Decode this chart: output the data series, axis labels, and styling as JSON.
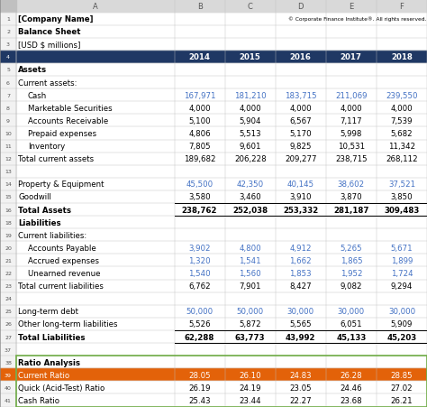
{
  "title_row1": "[Company Name]",
  "title_row2": "Balance Sheet",
  "title_row3": "[USD $ millions]",
  "copyright": "© Corporate Finance Institute®. All rights reserved.",
  "col_headers": [
    "A",
    "B",
    "C",
    "D",
    "E",
    "F"
  ],
  "header_years": [
    "2014",
    "2015",
    "2016",
    "2017",
    "2018"
  ],
  "header_bg": "#1f3864",
  "header_fg": "#ffffff",
  "col_header_bg": "#d9d9d9",
  "col_header_fg": "#555555",
  "row_num_bg": "#f2f2f2",
  "row_num_fg": "#555555",
  "rows": [
    {
      "row": 1,
      "label": "[Company Name]",
      "values": [
        "",
        "",
        "",
        "",
        ""
      ],
      "bold": true,
      "indent": 0,
      "color_vals": false,
      "is_title": true,
      "title_idx": 0
    },
    {
      "row": 2,
      "label": "Balance Sheet",
      "values": [
        "",
        "",
        "",
        "",
        ""
      ],
      "bold": true,
      "indent": 0,
      "color_vals": false,
      "is_title": true,
      "title_idx": 1
    },
    {
      "row": 3,
      "label": "[USD $ millions]",
      "values": [
        "",
        "",
        "",
        "",
        ""
      ],
      "bold": false,
      "indent": 0,
      "color_vals": false,
      "is_title": true,
      "title_idx": 2
    },
    {
      "row": 4,
      "label": "",
      "values": [
        "2014",
        "2015",
        "2016",
        "2017",
        "2018"
      ],
      "bold": true,
      "indent": 0,
      "color_vals": false,
      "is_year_header": true
    },
    {
      "row": 5,
      "label": "Assets",
      "values": [
        "",
        "",
        "",
        "",
        ""
      ],
      "bold": true,
      "indent": 0,
      "color_vals": false
    },
    {
      "row": 6,
      "label": "Current assets:",
      "values": [
        "",
        "",
        "",
        "",
        ""
      ],
      "bold": false,
      "indent": 0,
      "color_vals": false
    },
    {
      "row": 7,
      "label": "Cash",
      "values": [
        "167,971",
        "181,210",
        "183,715",
        "211,069",
        "239,550"
      ],
      "bold": false,
      "indent": 1,
      "color_vals": true
    },
    {
      "row": 8,
      "label": "Marketable Securities",
      "values": [
        "4,000",
        "4,000",
        "4,000",
        "4,000",
        "4,000"
      ],
      "bold": false,
      "indent": 1,
      "color_vals": false
    },
    {
      "row": 9,
      "label": "Accounts Receivable",
      "values": [
        "5,100",
        "5,904",
        "6,567",
        "7,117",
        "7,539"
      ],
      "bold": false,
      "indent": 1,
      "color_vals": false
    },
    {
      "row": 10,
      "label": "Prepaid expenses",
      "values": [
        "4,806",
        "5,513",
        "5,170",
        "5,998",
        "5,682"
      ],
      "bold": false,
      "indent": 1,
      "color_vals": false
    },
    {
      "row": 11,
      "label": "Inventory",
      "values": [
        "7,805",
        "9,601",
        "9,825",
        "10,531",
        "11,342"
      ],
      "bold": false,
      "indent": 1,
      "color_vals": false
    },
    {
      "row": 12,
      "label": "Total current assets",
      "values": [
        "189,682",
        "206,228",
        "209,277",
        "238,715",
        "268,112"
      ],
      "bold": false,
      "indent": 0,
      "color_vals": false
    },
    {
      "row": 13,
      "label": "",
      "values": [
        "",
        "",
        "",
        "",
        ""
      ],
      "bold": false,
      "indent": 0,
      "color_vals": false
    },
    {
      "row": 14,
      "label": "Property & Equipment",
      "values": [
        "45,500",
        "42,350",
        "40,145",
        "38,602",
        "37,521"
      ],
      "bold": false,
      "indent": 0,
      "color_vals": true
    },
    {
      "row": 15,
      "label": "Goodwill",
      "values": [
        "3,580",
        "3,460",
        "3,910",
        "3,870",
        "3,850"
      ],
      "bold": false,
      "indent": 0,
      "color_vals": false
    },
    {
      "row": 16,
      "label": "Total Assets",
      "values": [
        "238,762",
        "252,038",
        "253,332",
        "281,187",
        "309,483"
      ],
      "bold": true,
      "indent": 0,
      "color_vals": false,
      "border_top": true
    },
    {
      "row": 18,
      "label": "Liabilities",
      "values": [
        "",
        "",
        "",
        "",
        ""
      ],
      "bold": true,
      "indent": 0,
      "color_vals": false
    },
    {
      "row": 19,
      "label": "Current liabilities:",
      "values": [
        "",
        "",
        "",
        "",
        ""
      ],
      "bold": false,
      "indent": 0,
      "color_vals": false
    },
    {
      "row": 20,
      "label": "Accounts Payable",
      "values": [
        "3,902",
        "4,800",
        "4,912",
        "5,265",
        "5,671"
      ],
      "bold": false,
      "indent": 1,
      "color_vals": true
    },
    {
      "row": 21,
      "label": "Accrued expenses",
      "values": [
        "1,320",
        "1,541",
        "1,662",
        "1,865",
        "1,899"
      ],
      "bold": false,
      "indent": 1,
      "color_vals": true
    },
    {
      "row": 22,
      "label": "Unearned revenue",
      "values": [
        "1,540",
        "1,560",
        "1,853",
        "1,952",
        "1,724"
      ],
      "bold": false,
      "indent": 1,
      "color_vals": true
    },
    {
      "row": 23,
      "label": "Total current liabilities",
      "values": [
        "6,762",
        "7,901",
        "8,427",
        "9,082",
        "9,294"
      ],
      "bold": false,
      "indent": 0,
      "color_vals": false
    },
    {
      "row": 24,
      "label": "",
      "values": [
        "",
        "",
        "",
        "",
        ""
      ],
      "bold": false,
      "indent": 0,
      "color_vals": false
    },
    {
      "row": 25,
      "label": "Long-term debt",
      "values": [
        "50,000",
        "50,000",
        "30,000",
        "30,000",
        "30,000"
      ],
      "bold": false,
      "indent": 0,
      "color_vals": true
    },
    {
      "row": 26,
      "label": "Other long-term liabilities",
      "values": [
        "5,526",
        "5,872",
        "5,565",
        "6,051",
        "5,909"
      ],
      "bold": false,
      "indent": 0,
      "color_vals": false
    },
    {
      "row": 27,
      "label": "Total Liabilities",
      "values": [
        "62,288",
        "63,773",
        "43,992",
        "45,133",
        "45,203"
      ],
      "bold": true,
      "indent": 0,
      "color_vals": false,
      "border_top": true
    },
    {
      "row": 37,
      "label": "",
      "values": [
        "",
        "",
        "",
        "",
        ""
      ],
      "bold": false,
      "indent": 0,
      "color_vals": false
    },
    {
      "row": 38,
      "label": "Ratio Analysis",
      "values": [
        "",
        "",
        "",
        "",
        ""
      ],
      "bold": true,
      "indent": 0,
      "color_vals": false
    },
    {
      "row": 39,
      "label": "Current Ratio",
      "values": [
        "28.05",
        "26.10",
        "24.83",
        "26.28",
        "28.85"
      ],
      "bold": false,
      "indent": 0,
      "color_vals": false,
      "highlight": "#e36209"
    },
    {
      "row": 40,
      "label": "Quick (Acid-Test) Ratio",
      "values": [
        "26.19",
        "24.19",
        "23.05",
        "24.46",
        "27.02"
      ],
      "bold": false,
      "indent": 0,
      "color_vals": false
    },
    {
      "row": 41,
      "label": "Cash Ratio",
      "values": [
        "25.43",
        "23.44",
        "22.27",
        "23.68",
        "26.21"
      ],
      "bold": false,
      "indent": 0,
      "color_vals": false
    }
  ],
  "blue_val_color": "#4472c4",
  "black_val_color": "#000000",
  "bg_color": "#ffffff",
  "grid_color": "#c0c0c0",
  "green_border_color": "#70ad47"
}
